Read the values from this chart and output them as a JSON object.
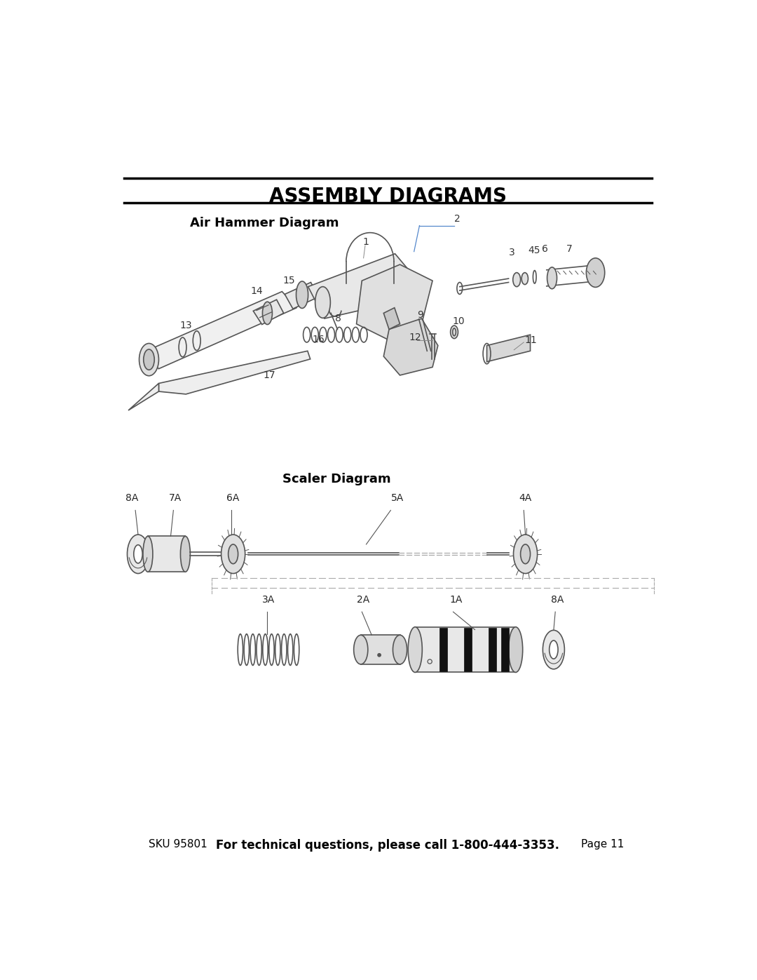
{
  "title": "ASSEMBLY DIAGRAMS",
  "air_hammer_title": "Air Hammer Diagram",
  "scaler_title": "Scaler Diagram",
  "footer_sku": "SKU 95801",
  "footer_center": "For technical questions, please call 1-800-444-3353.",
  "footer_page": "Page 11",
  "bg_color": "#ffffff",
  "text_color": "#000000",
  "line_color": "#333333",
  "diagram_color": "#555555"
}
